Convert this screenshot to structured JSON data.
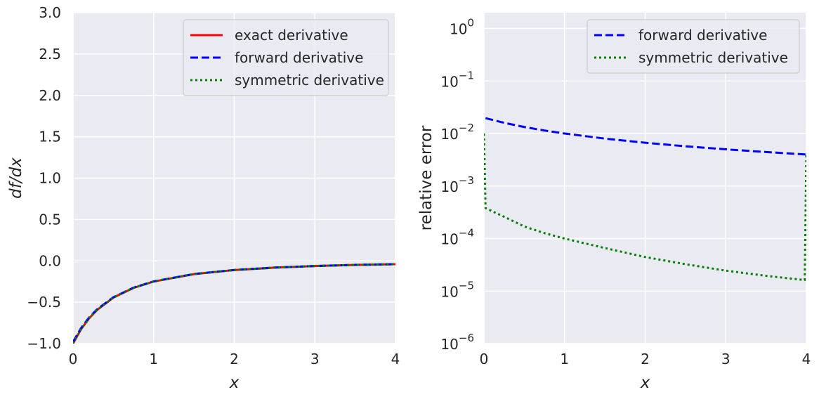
{
  "chart_data": [
    {
      "type": "line",
      "xlabel": "x",
      "ylabel": "df/dx",
      "xlim": [
        0,
        4
      ],
      "ylim": [
        -1.0,
        3.0
      ],
      "xticks": [
        "0",
        "1",
        "2",
        "3",
        "4"
      ],
      "yticks": [
        "−1.0",
        "−0.5",
        "0.0",
        "0.5",
        "1.0",
        "1.5",
        "2.0",
        "2.5",
        "3.0"
      ],
      "grid": true,
      "legend_position": "top-right",
      "series": [
        {
          "name": "exact derivative",
          "color": "#ff0000",
          "style": "solid",
          "x": [
            0,
            0.1,
            0.2,
            0.3,
            0.5,
            0.75,
            1,
            1.5,
            2,
            2.5,
            3,
            3.5,
            4
          ],
          "y": [
            -1.0,
            -0.826,
            -0.694,
            -0.592,
            -0.444,
            -0.327,
            -0.25,
            -0.16,
            -0.111,
            -0.082,
            -0.0625,
            -0.049,
            -0.04
          ]
        },
        {
          "name": "forward derivative",
          "color": "#0000ff",
          "style": "dashed",
          "x": [
            0,
            0.1,
            0.2,
            0.3,
            0.5,
            0.75,
            1,
            1.5,
            2,
            2.5,
            3,
            3.5,
            4
          ],
          "y": [
            -0.98,
            -0.812,
            -0.684,
            -0.584,
            -0.44,
            -0.324,
            -0.248,
            -0.159,
            -0.11,
            -0.081,
            -0.0622,
            -0.0488,
            -0.0398
          ]
        },
        {
          "name": "symmetric derivative",
          "color": "#008000",
          "style": "dotted",
          "x": [
            0,
            0.1,
            0.2,
            0.3,
            0.5,
            0.75,
            1,
            1.5,
            2,
            2.5,
            3,
            3.5,
            4
          ],
          "y": [
            -1.0,
            -0.826,
            -0.694,
            -0.592,
            -0.444,
            -0.327,
            -0.25,
            -0.16,
            -0.111,
            -0.082,
            -0.0625,
            -0.049,
            -0.04
          ]
        }
      ]
    },
    {
      "type": "line",
      "xlabel": "x",
      "ylabel": "relative error",
      "xlim": [
        0,
        4
      ],
      "ylim": [
        1e-06,
        2
      ],
      "yscale": "log",
      "xticks": [
        "0",
        "1",
        "2",
        "3",
        "4"
      ],
      "yticks": [
        {
          "base": "10",
          "exp": "−6"
        },
        {
          "base": "10",
          "exp": "−5"
        },
        {
          "base": "10",
          "exp": "−4"
        },
        {
          "base": "10",
          "exp": "−3"
        },
        {
          "base": "10",
          "exp": "−2"
        },
        {
          "base": "10",
          "exp": "−1"
        },
        {
          "base": "10",
          "exp": "0"
        }
      ],
      "grid": true,
      "legend_position": "top-right",
      "series": [
        {
          "name": "forward derivative",
          "color": "#0000ff",
          "style": "dashed",
          "x": [
            0.02,
            0.25,
            0.5,
            0.75,
            1,
            1.5,
            2,
            2.5,
            3,
            3.5,
            3.98,
            4
          ],
          "y": [
            0.0196,
            0.016,
            0.0133,
            0.0114,
            0.01,
            0.008,
            0.00667,
            0.00571,
            0.005,
            0.00444,
            0.004,
            0.004
          ]
        },
        {
          "name": "symmetric derivative",
          "color": "#008000",
          "style": "dotted",
          "x": [
            0,
            0.02,
            0.25,
            0.5,
            0.75,
            1,
            1.5,
            2,
            2.5,
            3,
            3.5,
            3.98,
            4
          ],
          "y": [
            0.01,
            0.00038,
            0.00026,
            0.00017,
            0.000127,
            0.0001,
            6.6e-05,
            4.45e-05,
            3.25e-05,
            2.45e-05,
            1.95e-05,
            1.62e-05,
            0.004
          ]
        }
      ]
    }
  ]
}
